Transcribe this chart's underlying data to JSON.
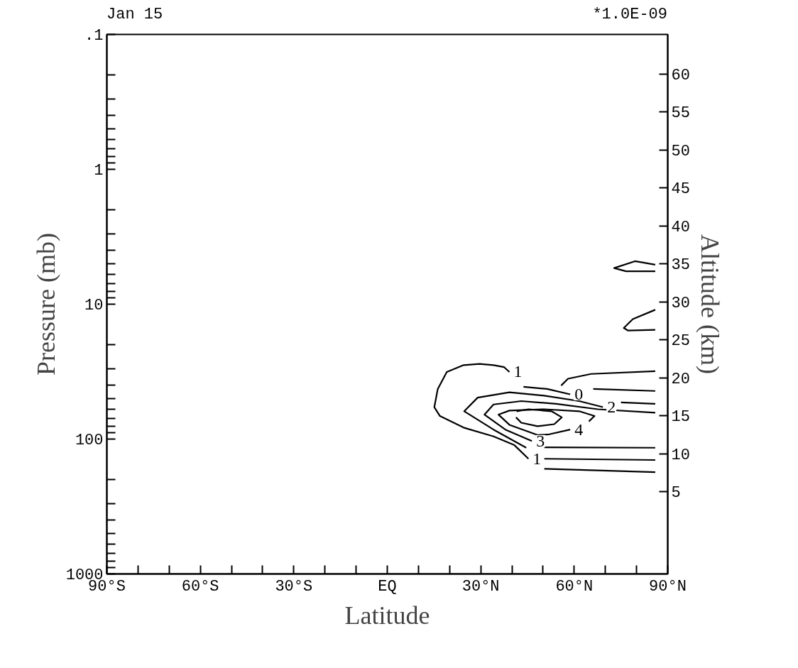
{
  "chart_data": {
    "type": "line",
    "title": "Jan 15",
    "xlabel": "Latitude",
    "ylabel": "Pressure (mb)",
    "y2label": "Altitude (km)",
    "annotations": [
      "*1.0E-09",
      {
        "text": "1",
        "x": 39.2,
        "y": 31.8
      },
      {
        "text": "0",
        "x": 58.7,
        "y": 46.6
      },
      {
        "text": "2",
        "x": 69.2,
        "y": 58.0
      },
      {
        "text": "4",
        "x": 58.7,
        "y": 85.1
      },
      {
        "text": "3",
        "x": 46.4,
        "y": 103.5
      },
      {
        "text": "1",
        "x": 45.3,
        "y": 140
      }
    ],
    "log": "y",
    "grid": false,
    "marker": "none",
    "line_style": "solid",
    "xlim": [
      -90,
      90
    ],
    "xticks": [
      {
        "value": -90,
        "label": "90°S"
      },
      {
        "value": -80,
        "label": null
      },
      {
        "value": -70,
        "label": null
      },
      {
        "value": -60,
        "label": "60°S"
      },
      {
        "value": -50,
        "label": null
      },
      {
        "value": -40,
        "label": null
      },
      {
        "value": -30,
        "label": "30°S"
      },
      {
        "value": -20,
        "label": null
      },
      {
        "value": -10,
        "label": null
      },
      {
        "value": 0,
        "label": "EQ"
      },
      {
        "value": 10,
        "label": null
      },
      {
        "value": 20,
        "label": null
      },
      {
        "value": 30,
        "label": "30°N"
      },
      {
        "value": 40,
        "label": null
      },
      {
        "value": 50,
        "label": null
      },
      {
        "value": 60,
        "label": "60°N"
      },
      {
        "value": 70,
        "label": null
      },
      {
        "value": 80,
        "label": null
      },
      {
        "value": 90,
        "label": "90°N"
      }
    ],
    "ylim": [
      1000,
      0.1
    ],
    "yticks": [
      {
        "value": 0.1,
        "label": ".1"
      },
      {
        "value": 0.2,
        "label": null
      },
      {
        "value": 0.3,
        "label": null
      },
      {
        "value": 0.4,
        "label": null
      },
      {
        "value": 0.5,
        "label": null
      },
      {
        "value": 0.6,
        "label": null
      },
      {
        "value": 0.7,
        "label": null
      },
      {
        "value": 0.8,
        "label": null
      },
      {
        "value": 0.9,
        "label": null
      },
      1,
      {
        "value": 2,
        "label": null
      },
      {
        "value": 3,
        "label": null
      },
      {
        "value": 4,
        "label": null
      },
      {
        "value": 5,
        "label": null
      },
      {
        "value": 6,
        "label": null
      },
      {
        "value": 7,
        "label": null
      },
      {
        "value": 8,
        "label": null
      },
      {
        "value": 9,
        "label": null
      },
      10,
      {
        "value": 20,
        "label": null
      },
      {
        "value": 30,
        "label": null
      },
      {
        "value": 40,
        "label": null
      },
      {
        "value": 50,
        "label": null
      },
      {
        "value": 60,
        "label": null
      },
      {
        "value": 70,
        "label": null
      },
      {
        "value": 80,
        "label": null
      },
      {
        "value": 90,
        "label": null
      },
      100,
      {
        "value": 200,
        "label": null
      },
      {
        "value": 300,
        "label": null
      },
      {
        "value": 400,
        "label": null
      },
      {
        "value": 500,
        "label": null
      },
      {
        "value": 600,
        "label": null
      },
      {
        "value": 700,
        "label": null
      },
      {
        "value": 800,
        "label": null
      },
      {
        "value": 900,
        "label": null
      },
      1000
    ],
    "y2lim": [
      -5.8,
      65.2
    ],
    "y2ticks": [
      5,
      10,
      15,
      20,
      25,
      30,
      35,
      40,
      45,
      50,
      55,
      60
    ],
    "series": [
      {
        "color": "#000000",
        "x": [
          39.2,
          37.5,
          34.1,
          29.6,
          24.5,
          19.1,
          16.2,
          15.1,
          16.9,
          24.5,
          34.1,
          40.8,
          45.3
        ],
        "values": [
          31.8,
          29.3,
          28.3,
          27.7,
          28.3,
          31.8,
          42.5,
          58.0,
          67.5,
          82.2,
          95.5,
          111,
          140
        ]
      },
      {
        "color": "#000000",
        "x": [
          43.7,
          51.3,
          58.7
        ],
        "values": [
          41.0,
          42.5,
          46.6
        ]
      },
      {
        "color": "#000000",
        "x": [
          44.6,
          34.1,
          24.7,
          29.0,
          39.2,
          50.4,
          61.6,
          69.2
        ],
        "values": [
          116,
          85.1,
          62.2,
          49.3,
          45.0,
          47.7,
          52.3,
          58.0
        ]
      },
      {
        "color": "#000000",
        "x": [
          75.0,
          86.0
        ],
        "values": [
          53.5,
          54.8
        ]
      },
      {
        "color": "#000000",
        "x": [
          46.4,
          37.9,
          31.2,
          34.1,
          43.0,
          54.2,
          67.6,
          86.0
        ],
        "values": [
          103.5,
          85.1,
          65.9,
          55.4,
          52.3,
          54.8,
          60.1,
          63.7
        ]
      },
      {
        "color": "#000000",
        "x": [
          58.7,
          52.0,
          48.2,
          39.2,
          35.7,
          39.2,
          50.4,
          61.6,
          66.5,
          64.7
        ],
        "values": [
          85.1,
          92.2,
          93.3,
          78.4,
          65.9,
          61.5,
          60.1,
          62.2,
          67.5,
          74.0
        ]
      },
      {
        "color": "#000000",
        "x": [
          41.5,
          45.3,
          52.7,
          56.0,
          53.6,
          48.2,
          43.0,
          41.3
        ],
        "values": [
          62.2,
          60.1,
          62.2,
          69.0,
          77.5,
          80.3,
          75.7,
          69.0
        ]
      },
      {
        "color": "#000000",
        "x": [
          55.8,
          58.0,
          65.4,
          86.0
        ],
        "values": [
          40.1,
          35.7,
          32.9,
          31.4
        ]
      },
      {
        "color": "#000000",
        "x": [
          66.1,
          86.0
        ],
        "values": [
          42.5,
          44.0
        ]
      },
      {
        "color": "#000000",
        "x": [
          50.4,
          86.0
        ],
        "values": [
          115,
          116
        ]
      },
      {
        "color": "#000000",
        "x": [
          50.4,
          86.0
        ],
        "values": [
          140,
          143
        ]
      },
      {
        "color": "#000000",
        "x": [
          50.4,
          86.0
        ],
        "values": [
          166,
          176
        ]
      },
      {
        "color": "#000000",
        "x": [
          86.0,
          79.5,
          72.8,
          76.6,
          86.0
        ],
        "values": [
          5.1,
          4.8,
          5.4,
          5.7,
          5.7
        ]
      },
      {
        "color": "#000000",
        "x": [
          86.0,
          78.8,
          75.9,
          77.3,
          86.0
        ],
        "values": [
          11.0,
          12.9,
          15.0,
          15.7,
          15.5
        ]
      }
    ]
  }
}
